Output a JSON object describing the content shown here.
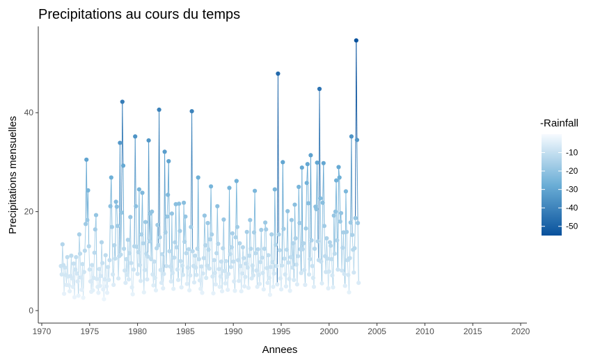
{
  "chart_data": {
    "type": "scatter",
    "title": "Precipitations au cours du temps",
    "xlabel": "Annees",
    "ylabel": "Precipitations mensuelles",
    "xlim": [
      1970,
      2020
    ],
    "ylim": [
      -2,
      58
    ],
    "x_ticks": [
      1970,
      1975,
      1980,
      1985,
      1990,
      1995,
      2000,
      2005,
      2010,
      2015,
      2020
    ],
    "y_ticks": [
      0,
      20,
      40
    ],
    "grid": false,
    "marks": "monthly points joined by vertical lines, coloured by rainfall",
    "legend": {
      "title": "-Rainfall",
      "position": "right",
      "type": "continuous colorbar",
      "ticks": [
        -10,
        -20,
        -30,
        -40,
        -50
      ],
      "low_color": "#f7fbff",
      "mid_color": "#6baed6",
      "high_color": "#08519c"
    },
    "x_start": 1972.0,
    "x_step": 0.08333,
    "values": [
      9.0,
      7.3,
      13.4,
      9.2,
      3.4,
      8.7,
      7.2,
      5.2,
      10.8,
      6.9,
      5.1,
      3.9,
      7.0,
      11.1,
      6.5,
      4.8,
      9.5,
      2.7,
      8.3,
      10.8,
      7.5,
      5.9,
      3.0,
      15.4,
      11.5,
      6.7,
      4.2,
      9.4,
      2.6,
      7.8,
      12.1,
      17.5,
      30.5,
      18.3,
      24.3,
      13.0,
      8.3,
      5.9,
      3.8,
      9.2,
      4.1,
      6.6,
      11.7,
      16.4,
      19.3,
      6.4,
      4.8,
      3.6,
      8.4,
      5.0,
      7.0,
      13.8,
      9.6,
      4.3,
      2.3,
      6.3,
      11.2,
      4.9,
      3.6,
      8.8,
      6.2,
      10.2,
      21.1,
      26.9,
      16.9,
      7.3,
      5.2,
      13.2,
      10.5,
      22.0,
      21.0,
      17.1,
      6.5,
      11.0,
      33.9,
      11.3,
      19.8,
      42.2,
      29.3,
      12.5,
      8.1,
      5.6,
      10.4,
      7.2,
      14.3,
      6.3,
      11.6,
      18.9,
      9.6,
      4.7,
      3.3,
      8.3,
      13.0,
      35.2,
      21.1,
      12.9,
      7.4,
      11.8,
      24.5,
      9.2,
      6.0,
      15.4,
      23.8,
      13.6,
      3.7,
      8.2,
      17.9,
      11.5,
      6.3,
      10.9,
      34.4,
      14.0,
      19.6,
      10.4,
      20.0,
      7.3,
      5.1,
      9.9,
      6.6,
      4.1,
      12.6,
      17.3,
      13.2,
      40.6,
      14.8,
      8.2,
      5.6,
      11.4,
      4.5,
      7.4,
      32.1,
      15.8,
      9.0,
      19.0,
      23.4,
      30.2,
      12.0,
      8.9,
      5.9,
      19.6,
      7.6,
      4.4,
      10.7,
      13.8,
      21.5,
      12.8,
      8.3,
      6.2,
      21.6,
      16.1,
      10.0,
      4.7,
      9.1,
      7.2,
      21.8,
      13.9,
      19.0,
      11.6,
      5.4,
      8.7,
      12.4,
      4.1,
      7.1,
      16.9,
      40.3,
      12.0,
      9.0,
      5.7,
      11.1,
      8.7,
      7.2,
      12.5,
      26.9,
      10.4,
      6.1,
      4.4,
      8.9,
      3.6,
      7.5,
      10.6,
      19.2,
      13.2,
      6.6,
      9.1,
      17.7,
      12.3,
      8.5,
      14.4,
      25.1,
      15.4,
      6.9,
      3.5,
      10.2,
      7.6,
      5.3,
      11.6,
      21.1,
      13.5,
      8.4,
      4.8,
      6.9,
      9.9,
      3.9,
      12.6,
      18.4,
      8.0,
      5.5,
      10.0,
      6.8,
      4.2,
      7.4,
      24.8,
      11.4,
      8.8,
      12.8,
      15.6,
      9.9,
      5.9,
      4.0,
      14.8,
      26.2,
      16.9,
      10.2,
      6.0,
      13.6,
      9.0,
      3.9,
      7.5,
      12.8,
      10.6,
      4.9,
      6.8,
      9.5,
      15.9,
      8.7,
      4.6,
      11.1,
      18.3,
      12.5,
      6.5,
      9.1,
      7.1,
      15.8,
      24.2,
      11.6,
      8.1,
      4.8,
      12.4,
      7.2,
      5.4,
      9.8,
      16.3,
      10.7,
      7.6,
      4.3,
      12.5,
      17.8,
      16.4,
      8.6,
      5.6,
      11.2,
      6.6,
      3.2,
      8.8,
      15.4,
      9.8,
      4.8,
      7.5,
      24.5,
      13.3,
      9.0,
      5.3,
      47.9,
      15.4,
      12.2,
      6.5,
      4.3,
      9.1,
      30.0,
      16.5,
      10.5,
      7.3,
      4.9,
      12.3,
      20.1,
      9.7,
      6.4,
      4.0,
      10.8,
      18.3,
      8.7,
      13.6,
      6.2,
      21.4,
      14.6,
      9.3,
      5.3,
      11.0,
      25.0,
      17.7,
      12.4,
      7.6,
      28.9,
      12.4,
      13.6,
      8.2,
      5.2,
      16.6,
      25.8,
      29.6,
      21.7,
      7.3,
      10.4,
      31.4,
      14.2,
      9.0,
      6.6,
      4.8,
      12.5,
      21.0,
      20.5,
      29.9,
      14.0,
      10.2,
      44.8,
      22.7,
      9.9,
      5.5,
      21.8,
      29.8,
      17.1,
      11.0,
      7.8,
      14.6,
      10.5,
      4.5,
      7.9,
      13.8,
      13.1,
      10.4,
      7.1,
      4.7,
      19.2,
      11.5,
      20.0,
      26.3,
      14.2,
      8.3,
      29.0,
      26.9,
      18.0,
      19.7,
      8.1,
      12.7,
      15.8,
      7.4,
      5.0,
      24.1,
      15.9,
      10.2,
      7.2,
      3.7,
      10.6,
      17.8,
      35.2,
      15.3,
      12.3,
      7.7,
      12.6,
      18.7,
      54.6,
      34.5,
      17.7,
      5.6
    ]
  }
}
